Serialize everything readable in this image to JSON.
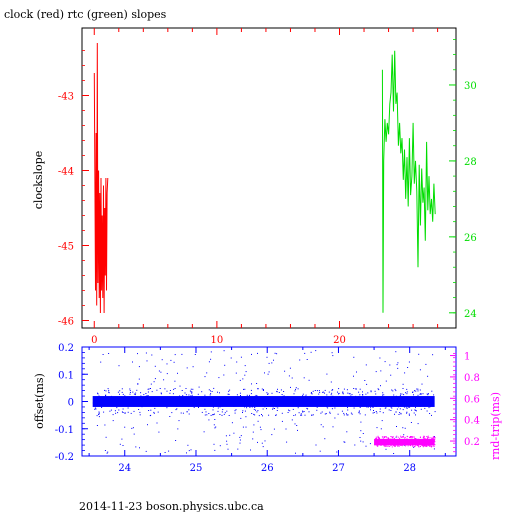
{
  "page": {
    "title": "clock (red) rtc (green) slopes",
    "footer": "2014-11-23 boson.physics.ubc.ca"
  },
  "chart_data": [
    {
      "id": "top",
      "type": "line",
      "ylabel": "clockslope",
      "x_ticks": [
        "0",
        "10",
        "20"
      ],
      "xlim": [
        -1,
        29.5
      ],
      "left_axis": {
        "ylim": [
          -46.1,
          -42.1
        ],
        "ticks": [
          "-43",
          "-44",
          "-45",
          "-46"
        ],
        "tick_values": [
          -43,
          -44,
          -45,
          -46
        ],
        "color": "#ff0000"
      },
      "right_axis": {
        "ylim": [
          23.6,
          31.5
        ],
        "ticks": [
          "24",
          "26",
          "28",
          "30"
        ],
        "tick_values": [
          24,
          26,
          28,
          30
        ],
        "color": "#00dd00"
      },
      "series": [
        {
          "color": "#ff0000",
          "axis": "left",
          "x": [
            0.0,
            0.1,
            0.15,
            0.2,
            0.25,
            0.3,
            0.35,
            0.4,
            0.45,
            0.5,
            0.55,
            0.6,
            0.65,
            0.7,
            0.75,
            0.8,
            0.85,
            0.9,
            0.95,
            1.0,
            1.05,
            1.1
          ],
          "y": [
            -42.7,
            -45.6,
            -43.5,
            -45.8,
            -42.3,
            -45.5,
            -44.0,
            -45.7,
            -44.3,
            -45.9,
            -44.1,
            -45.6,
            -44.6,
            -45.7,
            -44.2,
            -45.9,
            -44.5,
            -45.4,
            -44.1,
            -45.6,
            -44.3,
            -44.1
          ]
        },
        {
          "color": "#00dd00",
          "axis": "right",
          "x": [
            23.5,
            23.55,
            23.6,
            23.7,
            23.8,
            23.9,
            24.0,
            24.1,
            24.2,
            24.3,
            24.4,
            24.5,
            24.6,
            24.7,
            24.8,
            24.9,
            25.0,
            25.1,
            25.2,
            25.3,
            25.4,
            25.5,
            25.6,
            25.7,
            25.8,
            25.9,
            26.0,
            26.1,
            26.2,
            26.3,
            26.4,
            26.5,
            26.6,
            26.7,
            26.8,
            26.9,
            27.0,
            27.1,
            27.2,
            27.3,
            27.4,
            27.5,
            27.6,
            27.7,
            27.8
          ],
          "y": [
            30.4,
            24.0,
            28.0,
            29.1,
            28.5,
            29.0,
            28.7,
            29.5,
            29.8,
            30.8,
            29.3,
            30.9,
            29.5,
            29.8,
            28.4,
            29.0,
            28.2,
            28.6,
            27.5,
            28.3,
            27.0,
            28.1,
            26.8,
            28.6,
            27.1,
            27.6,
            29.0,
            27.4,
            28.0,
            27.2,
            25.2,
            27.9,
            26.3,
            27.8,
            26.9,
            27.3,
            25.9,
            28.5,
            26.7,
            27.6,
            26.6,
            27.0,
            26.4,
            27.4,
            26.6
          ]
        }
      ]
    },
    {
      "id": "bottom",
      "type": "scatter",
      "ylabel_left": "offset(ms)",
      "ylabel_right": "rnd-trip(ms)",
      "xlim": [
        23.4,
        28.65
      ],
      "x_ticks": [
        "24",
        "25",
        "26",
        "27",
        "28"
      ],
      "x_tick_values": [
        24,
        25,
        26,
        27,
        28
      ],
      "left_axis": {
        "ylim": [
          -0.2,
          0.2
        ],
        "ticks": [
          "0.2",
          "0.1",
          "0",
          "-0.1",
          "-0.2"
        ],
        "tick_values": [
          0.2,
          0.1,
          0,
          -0.1,
          -0.2
        ],
        "color": "#0000ff"
      },
      "right_axis": {
        "ylim": [
          0.06,
          1.08
        ],
        "ticks": [
          "1",
          "0.8",
          "0.6",
          "0.4",
          "0.2"
        ],
        "tick_values": [
          1,
          0.8,
          0.6,
          0.4,
          0.2
        ],
        "color": "#ff00ff"
      },
      "series": [
        {
          "color": "#0000ff",
          "axis": "left",
          "x_range": [
            23.55,
            28.35
          ],
          "band": [
            -0.02,
            0.02
          ],
          "outlier_range": [
            -0.2,
            0.2
          ]
        },
        {
          "color": "#ff00ff",
          "axis": "right",
          "x_range": [
            27.5,
            28.35
          ],
          "band": [
            0.15,
            0.25
          ]
        }
      ]
    }
  ]
}
